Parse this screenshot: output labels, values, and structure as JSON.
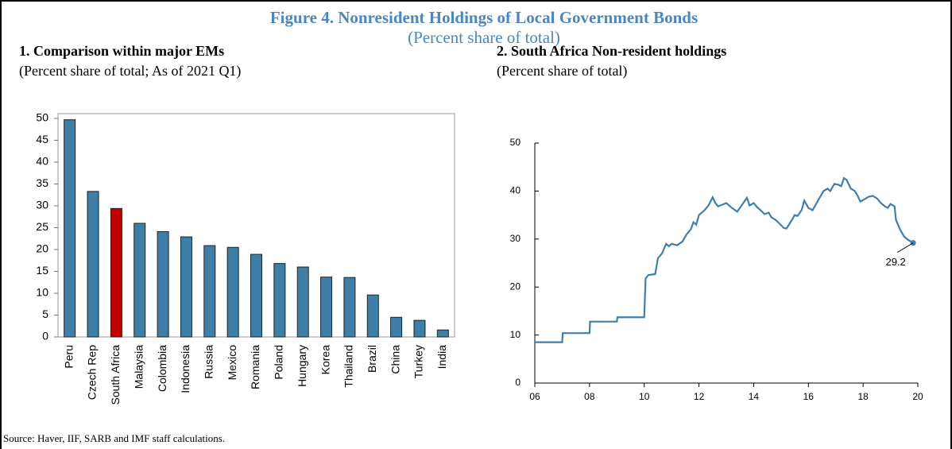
{
  "title": "Figure 4. Nonresident Holdings of Local Government Bonds",
  "subtitle": "(Percent share of total)",
  "source": "Source: Haver, IIF, SARB and IMF staff calculations.",
  "chart_data": [
    {
      "type": "bar",
      "title": "1. Comparison within major EMs",
      "subtitle": "(Percent share of total; As of 2021 Q1)",
      "categories": [
        "Peru",
        "Czech Rep",
        "South Africa",
        "Malaysia",
        "Colombia",
        "Indonesia",
        "Russia",
        "Mexico",
        "Romania",
        "Poland",
        "Hungary",
        "Korea",
        "Thailand",
        "Brazil",
        "China",
        "Turkey",
        "India"
      ],
      "values": [
        49.7,
        33.3,
        29.4,
        26.0,
        24.1,
        22.9,
        20.9,
        20.5,
        18.9,
        16.8,
        16.0,
        13.7,
        13.6,
        9.6,
        4.5,
        3.8,
        1.6
      ],
      "colors": [
        "#3d7fa6",
        "#3d7fa6",
        "#c00000",
        "#3d7fa6",
        "#3d7fa6",
        "#3d7fa6",
        "#3d7fa6",
        "#3d7fa6",
        "#3d7fa6",
        "#3d7fa6",
        "#3d7fa6",
        "#3d7fa6",
        "#3d7fa6",
        "#3d7fa6",
        "#3d7fa6",
        "#3d7fa6",
        "#3d7fa6"
      ],
      "ylim": [
        0,
        50
      ],
      "yticks": [
        0,
        5,
        10,
        15,
        20,
        25,
        30,
        35,
        40,
        45,
        50
      ],
      "grid": false
    },
    {
      "type": "line",
      "title": "2. South Africa Non-resident holdings",
      "subtitle": "(Percent share of total)",
      "x": [
        2006.0,
        2007.0,
        2007.02,
        2008.0,
        2008.02,
        2009.0,
        2009.02,
        2010.0,
        2010.05,
        2010.15,
        2010.4,
        2010.5,
        2010.65,
        2010.8,
        2010.9,
        2011.0,
        2011.2,
        2011.4,
        2011.55,
        2011.7,
        2011.8,
        2011.9,
        2012.0,
        2012.2,
        2012.35,
        2012.5,
        2012.6,
        2012.7,
        2013.0,
        2013.2,
        2013.4,
        2013.5,
        2013.75,
        2013.85,
        2014.0,
        2014.1,
        2014.25,
        2014.4,
        2014.55,
        2014.65,
        2014.8,
        2014.95,
        2015.1,
        2015.2,
        2015.4,
        2015.5,
        2015.6,
        2015.75,
        2015.85,
        2016.0,
        2016.15,
        2016.35,
        2016.55,
        2016.7,
        2016.8,
        2016.95,
        2017.1,
        2017.2,
        2017.3,
        2017.4,
        2017.55,
        2017.7,
        2017.8,
        2017.9,
        2018.05,
        2018.2,
        2018.35,
        2018.5,
        2018.65,
        2018.8,
        2018.9,
        2019.0,
        2019.15,
        2019.2,
        2019.35,
        2019.5,
        2019.65,
        2019.83
      ],
      "series": [
        {
          "color": "#3f7fb0",
          "values": [
            8.5,
            8.5,
            10.4,
            10.4,
            12.8,
            12.8,
            13.7,
            13.7,
            21.8,
            22.5,
            22.7,
            26,
            27,
            29,
            28.5,
            29,
            28.7,
            29.5,
            31,
            32,
            33.5,
            33,
            35,
            36,
            37,
            38.7,
            37.5,
            36.8,
            37.5,
            36.5,
            35.7,
            36.5,
            38.6,
            37,
            37.5,
            36.8,
            36,
            35.2,
            35.5,
            34.5,
            34,
            33.2,
            32.3,
            32.2,
            34,
            35,
            34.8,
            36,
            38,
            36.5,
            36,
            38,
            40,
            40.5,
            40,
            41.5,
            41.3,
            41,
            42.7,
            42.3,
            40.5,
            40,
            39,
            37.8,
            38.3,
            38.8,
            39,
            38.5,
            37.5,
            36.8,
            36.5,
            37.3,
            36.8,
            34,
            32,
            30.5,
            29.8,
            29.2
          ]
        }
      ],
      "xlim": [
        2006,
        2020
      ],
      "xticks": [
        {
          "value": 2006,
          "label": "06"
        },
        {
          "value": 2008,
          "label": "08"
        },
        {
          "value": 2010,
          "label": "10"
        },
        {
          "value": 2012,
          "label": "12"
        },
        {
          "value": 2014,
          "label": "14"
        },
        {
          "value": 2016,
          "label": "16"
        },
        {
          "value": 2018,
          "label": "18"
        },
        {
          "value": 2020,
          "label": "20"
        }
      ],
      "ylim": [
        0,
        50
      ],
      "yticks": [
        0,
        10,
        20,
        30,
        40,
        50
      ],
      "grid": false
    }
  ]
}
